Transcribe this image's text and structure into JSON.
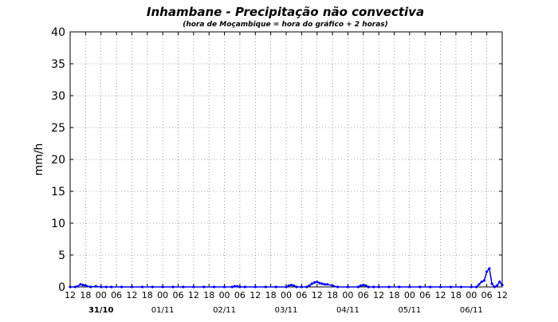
{
  "chart_data": {
    "type": "line",
    "title": "Inhambane - Precipitação não convectiva",
    "subtitle": "(hora de Moçambique = hora do gráfico + 2 horas)",
    "ylabel": "mm/h",
    "xlabel": "",
    "ylim": [
      0,
      40
    ],
    "yticks": [
      0,
      5,
      10,
      15,
      20,
      25,
      30,
      35,
      40
    ],
    "xlim_hours": [
      0,
      168
    ],
    "x_unit": "hours since 30/10 12:00",
    "x_ticks": [
      {
        "h": 0,
        "label": "12"
      },
      {
        "h": 6,
        "label": "18"
      },
      {
        "h": 12,
        "label": "00"
      },
      {
        "h": 18,
        "label": "06"
      },
      {
        "h": 24,
        "label": "12"
      },
      {
        "h": 30,
        "label": "18"
      },
      {
        "h": 36,
        "label": "00"
      },
      {
        "h": 42,
        "label": "06"
      },
      {
        "h": 48,
        "label": "12"
      },
      {
        "h": 54,
        "label": "18"
      },
      {
        "h": 60,
        "label": "00"
      },
      {
        "h": 66,
        "label": "06"
      },
      {
        "h": 72,
        "label": "12"
      },
      {
        "h": 78,
        "label": "18"
      },
      {
        "h": 84,
        "label": "00"
      },
      {
        "h": 90,
        "label": "06"
      },
      {
        "h": 96,
        "label": "12"
      },
      {
        "h": 102,
        "label": "18"
      },
      {
        "h": 108,
        "label": "00"
      },
      {
        "h": 114,
        "label": "06"
      },
      {
        "h": 120,
        "label": "12"
      },
      {
        "h": 126,
        "label": "18"
      },
      {
        "h": 132,
        "label": "00"
      },
      {
        "h": 138,
        "label": "06"
      },
      {
        "h": 144,
        "label": "12"
      },
      {
        "h": 150,
        "label": "18"
      },
      {
        "h": 156,
        "label": "00"
      },
      {
        "h": 162,
        "label": "06"
      },
      {
        "h": 168,
        "label": "12"
      }
    ],
    "day_labels": [
      {
        "h": 12,
        "label": "31/10",
        "bold": true
      },
      {
        "h": 36,
        "label": "01/11",
        "bold": false
      },
      {
        "h": 60,
        "label": "02/11",
        "bold": false
      },
      {
        "h": 84,
        "label": "03/11",
        "bold": false
      },
      {
        "h": 108,
        "label": "04/11",
        "bold": false
      },
      {
        "h": 132,
        "label": "05/11",
        "bold": false
      },
      {
        "h": 156,
        "label": "06/11",
        "bold": false
      }
    ],
    "grid": true,
    "series": [
      {
        "color": "#0000ff",
        "x": [
          0,
          2,
          3,
          4,
          5,
          6,
          8,
          10,
          12,
          14,
          16,
          20,
          24,
          28,
          32,
          36,
          40,
          44,
          48,
          52,
          56,
          60,
          63,
          64,
          65,
          66,
          68,
          72,
          76,
          80,
          84,
          85,
          86,
          87,
          88,
          90,
          92,
          93,
          94,
          95,
          96,
          97,
          98,
          99,
          100,
          102,
          104,
          108,
          112,
          113,
          114,
          115,
          116,
          118,
          120,
          124,
          128,
          132,
          136,
          140,
          144,
          148,
          152,
          156,
          158,
          159,
          160,
          161,
          162,
          163,
          164,
          165,
          166,
          167,
          168
        ],
        "y": [
          0,
          0,
          0.1,
          0.4,
          0.3,
          0.2,
          0,
          0.1,
          0,
          0,
          0,
          0,
          0,
          0,
          0,
          0,
          0,
          0,
          0,
          0,
          0,
          0,
          0,
          0.1,
          0.1,
          0,
          0,
          0,
          0,
          0,
          0,
          0.2,
          0.3,
          0.2,
          0,
          0,
          0,
          0.2,
          0.5,
          0.7,
          0.8,
          0.6,
          0.5,
          0.4,
          0.4,
          0.2,
          0,
          0,
          0,
          0.2,
          0.3,
          0.2,
          0,
          0,
          0,
          0,
          0,
          0,
          0,
          0,
          0,
          0,
          0,
          0,
          0,
          0.4,
          0.8,
          1.0,
          2.4,
          2.9,
          0.5,
          0,
          0.2,
          0.8,
          0.3
        ]
      }
    ]
  }
}
